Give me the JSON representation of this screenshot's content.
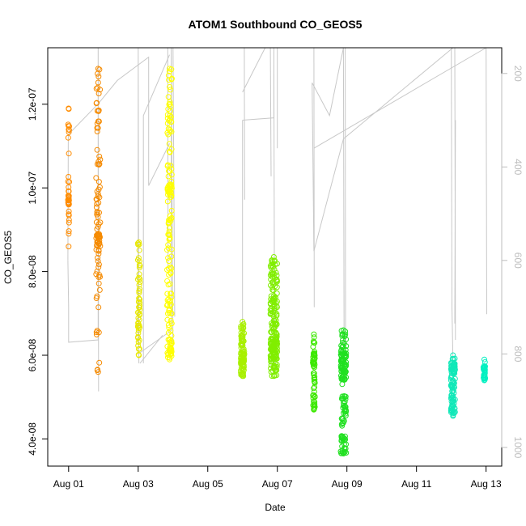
{
  "chart_data": {
    "type": "scatter",
    "title": "ATOM1 Southbound CO_GEOS5",
    "xlabel": "Date",
    "ylabel": "CO_GEOS5",
    "x_axis": {
      "min_day": 0.4,
      "max_day": 13.45,
      "ticks": [
        {
          "value": 1,
          "label": "Aug 01"
        },
        {
          "value": 3,
          "label": "Aug 03"
        },
        {
          "value": 5,
          "label": "Aug 05"
        },
        {
          "value": 7,
          "label": "Aug 07"
        },
        {
          "value": 9,
          "label": "Aug 09"
        },
        {
          "value": 11,
          "label": "Aug 11"
        },
        {
          "value": 13,
          "label": "Aug 13"
        }
      ]
    },
    "y_axis": {
      "min": 3.35e-08,
      "max": 1.335e-07,
      "ticks": [
        {
          "value": 4e-08,
          "label": "4.0e-08"
        },
        {
          "value": 6e-08,
          "label": "6.0e-08"
        },
        {
          "value": 8e-08,
          "label": "8.0e-08"
        },
        {
          "value": 1e-07,
          "label": "1.0e-07"
        },
        {
          "value": 1.2e-07,
          "label": "1.2e-07"
        }
      ]
    },
    "y2_axis": {
      "min": 1040,
      "max": 145,
      "ticks": [
        {
          "value": 200,
          "label": "200"
        },
        {
          "value": 400,
          "label": "400"
        },
        {
          "value": 600,
          "label": "600"
        },
        {
          "value": 800,
          "label": "800"
        },
        {
          "value": 1000,
          "label": "1000"
        }
      ]
    },
    "grid": false,
    "colors": {
      "day1": "#FF8C00",
      "day1b": "#F58A00",
      "day3": "#E8E800",
      "day3b": "#FFFF00",
      "day6": "#A8F000",
      "day7": "#80EE00",
      "day8": "#3CE800",
      "day9": "#20E020",
      "day12": "#10E8B8",
      "day13": "#00F0C0",
      "profile": "#c8c8c8"
    },
    "clusters": [
      {
        "x_center": 1.0,
        "x_spread": 0.02,
        "y_min": 8.6e-08,
        "y_max": 1.19e-07,
        "count": 28,
        "color": "day1",
        "bands": [
          [
            9.6e-08,
            9.8e-08,
            10
          ]
        ]
      },
      {
        "x_center": 1.85,
        "x_spread": 0.06,
        "y_min": 5.6e-08,
        "y_max": 1.285e-07,
        "count": 70,
        "color": "day1b",
        "bands": [
          [
            8.6e-08,
            8.9e-08,
            25
          ],
          [
            9.6e-08,
            1e-07,
            8
          ]
        ]
      },
      {
        "x_center": 3.02,
        "x_spread": 0.03,
        "y_min": 6e-08,
        "y_max": 8.7e-08,
        "count": 40,
        "color": "day3",
        "bands": [
          [
            6.6e-08,
            7.2e-08,
            12
          ]
        ]
      },
      {
        "x_center": 3.9,
        "x_spread": 0.07,
        "y_min": 5.9e-08,
        "y_max": 1.285e-07,
        "count": 110,
        "color": "day3b",
        "bands": [
          [
            9.8e-08,
            1.01e-07,
            25
          ],
          [
            6e-08,
            6.4e-08,
            20
          ],
          [
            7e-08,
            7.4e-08,
            10
          ]
        ]
      },
      {
        "x_center": 6.0,
        "x_spread": 0.05,
        "y_min": 5.5e-08,
        "y_max": 6.8e-08,
        "count": 70,
        "color": "day6",
        "bands": [
          [
            5.8e-08,
            6.1e-08,
            25
          ]
        ]
      },
      {
        "x_center": 6.9,
        "x_spread": 0.1,
        "y_min": 5.5e-08,
        "y_max": 8.35e-08,
        "count": 150,
        "color": "day7",
        "bands": [
          [
            5.9e-08,
            6.4e-08,
            60
          ]
        ]
      },
      {
        "x_center": 8.05,
        "x_spread": 0.03,
        "y_min": 4.7e-08,
        "y_max": 6.5e-08,
        "count": 40,
        "color": "day8",
        "bands": [
          [
            5.7e-08,
            6.1e-08,
            15
          ],
          [
            4.7e-08,
            4.9e-08,
            6
          ]
        ]
      },
      {
        "x_center": 8.9,
        "x_spread": 0.08,
        "y_min": 3.65e-08,
        "y_max": 6.6e-08,
        "count": 110,
        "color": "day9",
        "bands": [
          [
            5.4e-08,
            6.1e-08,
            50
          ]
        ]
      },
      {
        "x_center": 12.05,
        "x_spread": 0.06,
        "y_min": 4.55e-08,
        "y_max": 6e-08,
        "count": 70,
        "color": "day12",
        "bands": [
          [
            4.6e-08,
            4.8e-08,
            15
          ],
          [
            5.4e-08,
            5.8e-08,
            15
          ]
        ]
      },
      {
        "x_center": 12.95,
        "x_spread": 0.03,
        "y_min": 5.4e-08,
        "y_max": 5.9e-08,
        "count": 30,
        "color": "day13",
        "bands": []
      }
    ],
    "profile_segments": [
      [
        [
          0.98,
          600
        ],
        [
          0.99,
          330
        ],
        [
          1.0,
          330
        ]
      ],
      [
        [
          1.0,
          330
        ],
        [
          1.85,
          265
        ]
      ],
      [
        [
          0.98,
          600
        ],
        [
          1.0,
          700
        ],
        [
          1.0,
          775
        ],
        [
          1.85,
          770
        ],
        [
          1.85,
          145
        ],
        [
          1.86,
          880
        ]
      ],
      [
        [
          1.85,
          265
        ],
        [
          2.4,
          215
        ],
        [
          3.3,
          165
        ],
        [
          3.3,
          440
        ],
        [
          3.9,
          350
        ]
      ],
      [
        [
          3.0,
          780
        ],
        [
          3.0,
          145
        ],
        [
          3.02,
          820
        ]
      ],
      [
        [
          3.0,
          800
        ],
        [
          3.95,
          750
        ],
        [
          3.95,
          145
        ],
        [
          4.0,
          800
        ]
      ],
      [
        [
          4.0,
          145
        ],
        [
          4.05,
          720
        ]
      ],
      [
        [
          3.85,
          145
        ],
        [
          3.86,
          620
        ]
      ],
      [
        [
          3.15,
          820
        ],
        [
          3.15,
          290
        ],
        [
          3.9,
          160
        ]
      ],
      [
        [
          3.05,
          820
        ],
        [
          3.7,
          760
        ]
      ],
      [
        [
          6.0,
          820
        ],
        [
          6.0,
          300
        ]
      ],
      [
        [
          6.0,
          300
        ],
        [
          6.9,
          295
        ],
        [
          6.9,
          145
        ],
        [
          6.92,
          820
        ]
      ],
      [
        [
          6.05,
          145
        ],
        [
          6.06,
          470
        ]
      ],
      [
        [
          6.0,
          240
        ],
        [
          6.65,
          145
        ]
      ],
      [
        [
          6.8,
          145
        ],
        [
          6.82,
          420
        ]
      ],
      [
        [
          7.0,
          145
        ],
        [
          7.0,
          360
        ]
      ],
      [
        [
          8.0,
          220
        ],
        [
          8.05,
          580
        ],
        [
          8.9,
          340
        ],
        [
          12.05,
          145
        ]
      ],
      [
        [
          8.0,
          220
        ],
        [
          8.5,
          290
        ],
        [
          8.9,
          145
        ],
        [
          8.92,
          840
        ]
      ],
      [
        [
          8.95,
          145
        ],
        [
          8.96,
          780
        ]
      ],
      [
        [
          8.05,
          145
        ],
        [
          8.06,
          700
        ]
      ],
      [
        [
          8.05,
          360
        ],
        [
          13.0,
          145
        ]
      ],
      [
        [
          12.0,
          145
        ],
        [
          12.02,
          700
        ],
        [
          12.05,
          820
        ]
      ],
      [
        [
          12.1,
          145
        ],
        [
          12.12,
          770
        ]
      ],
      [
        [
          13.0,
          145
        ],
        [
          13.02,
          715
        ]
      ],
      [
        [
          12.1,
          735
        ],
        [
          12.12,
          300
        ]
      ]
    ]
  }
}
